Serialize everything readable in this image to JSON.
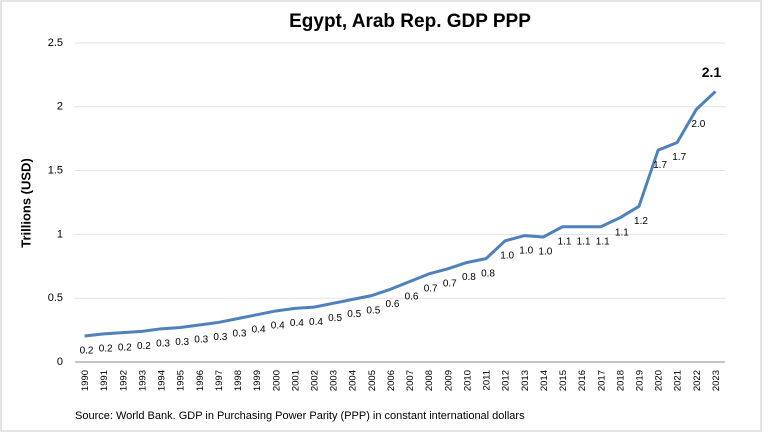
{
  "chart_data": {
    "type": "line",
    "title": "Egypt, Arab Rep. GDP PPP",
    "y_label": "Trillions (USD)",
    "source": "Source: World Bank. GDP in Purchasing Power Parity (PPP) in constant international dollars",
    "categories": [
      "1990",
      "1991",
      "1992",
      "1993",
      "1994",
      "1995",
      "1996",
      "1997",
      "1998",
      "1999",
      "2000",
      "2001",
      "2002",
      "2003",
      "2004",
      "2005",
      "2006",
      "2007",
      "2008",
      "2009",
      "2010",
      "2011",
      "2012",
      "2013",
      "2014",
      "2015",
      "2016",
      "2017",
      "2018",
      "2019",
      "2020",
      "2021",
      "2022",
      "2023"
    ],
    "series": [
      {
        "name": "GDP PPP",
        "color": "#4f81bd",
        "values": [
          0.204,
          0.22,
          0.23,
          0.24,
          0.26,
          0.27,
          0.29,
          0.31,
          0.34,
          0.37,
          0.4,
          0.42,
          0.43,
          0.46,
          0.49,
          0.52,
          0.57,
          0.63,
          0.69,
          0.73,
          0.78,
          0.81,
          0.95,
          0.99,
          0.98,
          1.06,
          1.06,
          1.06,
          1.13,
          1.22,
          1.66,
          1.72,
          1.98,
          2.12
        ],
        "value_labels": [
          "0.2",
          "0.2",
          "0.2",
          "0.2",
          "0.3",
          "0.3",
          "0.3",
          "0.3",
          "0.3",
          "0.4",
          "0.4",
          "0.4",
          "0.4",
          "0.5",
          "0.5",
          "0.5",
          "0.6",
          "0.6",
          "0.7",
          "0.7",
          "0.8",
          "0.8",
          "1.0",
          "1.0",
          "1.0",
          "1.1",
          "1.1",
          "1.1",
          "1.1",
          "1.2",
          "1.7",
          "1.7",
          "2.0",
          "2.1"
        ]
      }
    ],
    "ylim": [
      0,
      2.5
    ],
    "yticks": [
      0,
      0.5,
      1,
      1.5,
      2,
      2.5
    ],
    "grid": true
  }
}
